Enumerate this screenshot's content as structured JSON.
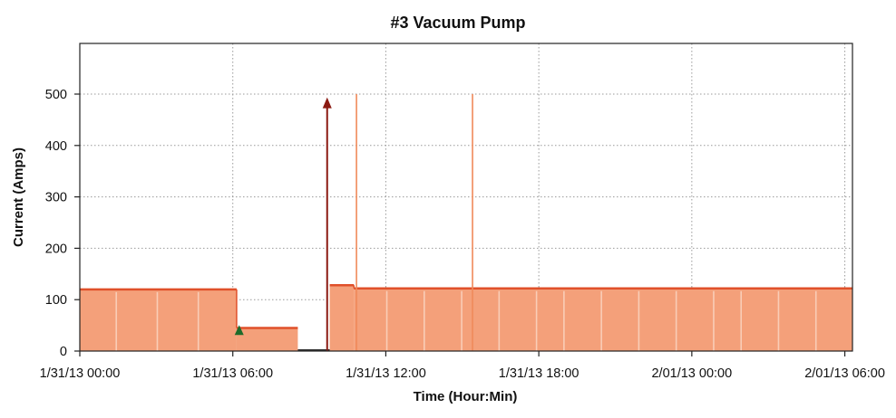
{
  "chart_data": {
    "type": "area",
    "title": "#3 Vacuum Pump",
    "xlabel": "Time (Hour:Min)",
    "ylabel": "Current (Amps)",
    "x_unit": "hours from 1/31/13 00:00",
    "xlim": [
      0,
      30.3
    ],
    "ylim": [
      0,
      500
    ],
    "y_ticks": [
      0,
      100,
      200,
      300,
      400,
      500
    ],
    "x_ticks": [
      {
        "value": 0,
        "label": "1/31/13 00:00"
      },
      {
        "value": 6,
        "label": "1/31/13 06:00"
      },
      {
        "value": 12,
        "label": "1/31/13 12:00"
      },
      {
        "value": 18,
        "label": "1/31/13 18:00"
      },
      {
        "value": 24,
        "label": "2/01/13 00:00"
      },
      {
        "value": 30,
        "label": "2/01/13 06:00"
      }
    ],
    "grid": true,
    "series": [
      {
        "color": "#f4a07a",
        "line_color": "#e0502a",
        "segments": [
          {
            "start": 0.0,
            "end": 6.15,
            "value": 120
          },
          {
            "start": 6.15,
            "end": 8.55,
            "value": 45
          },
          {
            "start": 9.8,
            "end": 10.75,
            "value": 128
          },
          {
            "start": 10.75,
            "end": 30.3,
            "value": 122
          }
        ],
        "spikes": [
          {
            "x": 10.85,
            "value": 500
          },
          {
            "x": 15.4,
            "value": 500
          }
        ]
      }
    ],
    "markers": [
      {
        "x": 9.7,
        "value": 490,
        "color": "#8b1a12",
        "shape": "arrow-up"
      },
      {
        "x": 6.25,
        "value": 40,
        "color": "#1e6b2a",
        "shape": "triangle-up"
      }
    ]
  }
}
